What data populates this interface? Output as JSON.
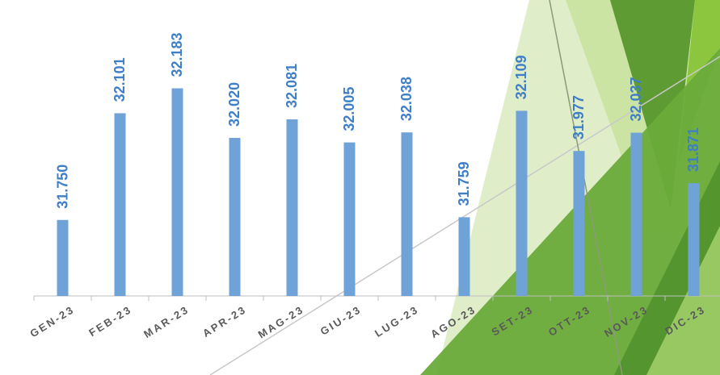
{
  "chart_data": {
    "type": "bar",
    "categories": [
      "GEN-23",
      "FEB-23",
      "MAR-23",
      "APR-23",
      "MAG-23",
      "GIU-23",
      "LUG-23",
      "AGO-23",
      "SET-23",
      "OTT-23",
      "NOV-23",
      "DIC-23"
    ],
    "values": [
      31750,
      32101,
      32183,
      32020,
      32081,
      32005,
      32038,
      31759,
      32109,
      31977,
      32037,
      31871
    ],
    "value_labels": [
      "31.750",
      "32.101",
      "32.183",
      "32.020",
      "32.081",
      "32.005",
      "32.038",
      "31.759",
      "32.109",
      "31.977",
      "32.037",
      "31.871"
    ],
    "color": "#6fa3d8",
    "ylim": [
      31500,
      32500
    ]
  }
}
